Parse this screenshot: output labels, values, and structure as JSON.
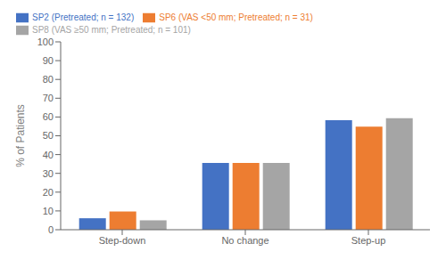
{
  "chart_data": {
    "type": "bar",
    "categories": [
      "Step-down",
      "No change",
      "Step-up"
    ],
    "series": [
      {
        "name": "SP2 (Pretreated; n = 132)",
        "color": "#4472C4",
        "values": [
          6.1,
          35.6,
          58.3
        ]
      },
      {
        "name": "SP6 (VAS <50 mm; Pretreated; n = 31)",
        "color": "#ED7D31",
        "values": [
          9.7,
          35.5,
          54.8
        ]
      },
      {
        "name": "SP8 (VAS ≥50 mm; Pretreated; n = 101)",
        "color": "#A5A5A5",
        "values": [
          5.0,
          35.6,
          59.4
        ]
      }
    ],
    "ylabel": "% of Patients",
    "ylim": [
      0,
      100
    ],
    "yticks": [
      0,
      10,
      20,
      30,
      40,
      50,
      60,
      70,
      80,
      90,
      100
    ],
    "grid": false,
    "legend": "upper left"
  }
}
